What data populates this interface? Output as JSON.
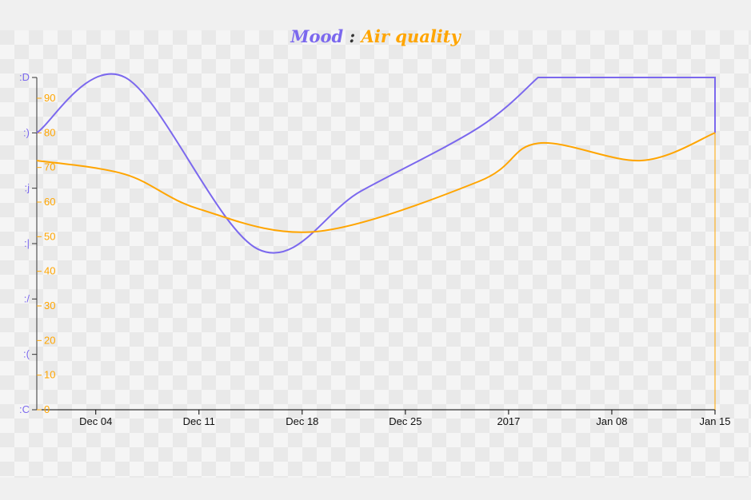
{
  "title": {
    "left": "Mood",
    "sep": " : ",
    "right": "Air quality"
  },
  "colors": {
    "mood": "#7b68ee",
    "air": "#ffa500",
    "axis_x": "#000000",
    "sep": "#333333"
  },
  "chart_data": {
    "type": "line",
    "x": [
      "Nov 30",
      "Dec 07",
      "Dec 15",
      "Dec 21",
      "Dec 28",
      "Jan 04",
      "Jan 15"
    ],
    "x_ticks": [
      "Dec 04",
      "Dec 11",
      "Dec 18",
      "Dec 25",
      "2017",
      "Jan 08",
      "Jan 15"
    ],
    "x_range": [
      "Nov 30",
      "Jan 15"
    ],
    "mood_scale": {
      "ticks": [
        ":C",
        ":(",
        ":/",
        ":|",
        ":j",
        ":)",
        ":D"
      ],
      "ylim": [
        0,
        6
      ]
    },
    "air_scale": {
      "ticks": [
        "0",
        "10",
        "20",
        "30",
        "40",
        "50",
        "60",
        "70",
        "80",
        "90"
      ],
      "ylim": [
        0,
        96
      ]
    },
    "series": [
      {
        "name": "Mood",
        "axis": "left",
        "points": [
          {
            "x": "Nov 30",
            "y": 5
          },
          {
            "x": "Dec 06",
            "y": 6
          },
          {
            "x": "Dec 15",
            "y": 2.9
          },
          {
            "x": "Dec 22",
            "y": 3.95
          },
          {
            "x": "Dec 30",
            "y": 5.1
          },
          {
            "x": "Jan 03",
            "y": 6
          },
          {
            "x": "Jan 15",
            "y": 6
          },
          {
            "x": "Jan 15",
            "y": 5
          }
        ]
      },
      {
        "name": "Air quality",
        "axis": "right",
        "points": [
          {
            "x": "Nov 30",
            "y": 72
          },
          {
            "x": "Dec 06",
            "y": 68
          },
          {
            "x": "Dec 11",
            "y": 58
          },
          {
            "x": "Dec 19",
            "y": 51.5
          },
          {
            "x": "Dec 30",
            "y": 66
          },
          {
            "x": "Jan 03",
            "y": 77
          },
          {
            "x": "Jan 10",
            "y": 72
          },
          {
            "x": "Jan 15",
            "y": 80
          }
        ]
      }
    ]
  }
}
